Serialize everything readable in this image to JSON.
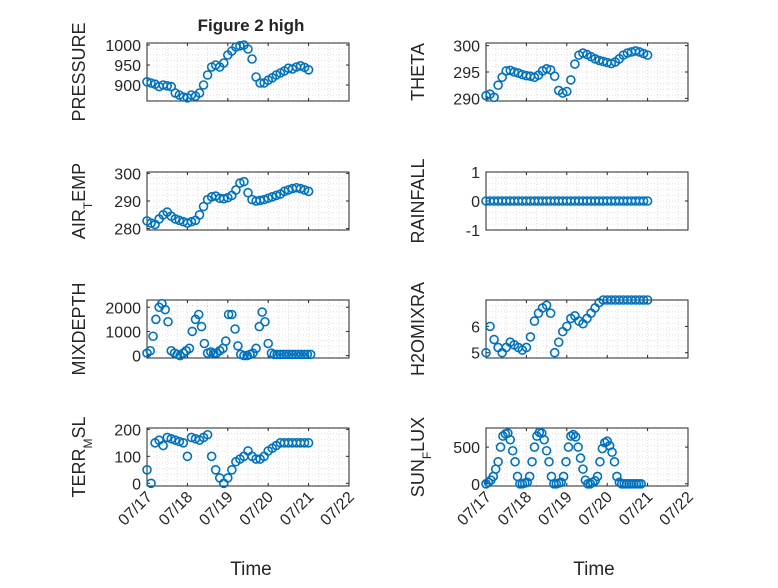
{
  "figure": {
    "title": "Figure 2 high",
    "xlabel_left": "Time",
    "xlabel_right": "Time",
    "marker_color": "#0072BD",
    "axis_color": "#262626",
    "grid_color": "#DFDFDF"
  },
  "chart_data": [
    {
      "type": "scatter",
      "ylabel": "PRESSURE",
      "ylim": [
        860,
        1005
      ],
      "yticks": [
        900,
        950,
        1000
      ],
      "yticklabels": [
        "900",
        "950",
        "1000"
      ],
      "xlim": [
        "07/17",
        "07/22"
      ],
      "xticks": [
        "07/17",
        "07/18",
        "07/19",
        "07/20",
        "07/21",
        "07/22"
      ],
      "show_x_ticklabels": false,
      "grid": true,
      "x": [
        0.0,
        0.1,
        0.2,
        0.3,
        0.4,
        0.5,
        0.6,
        0.7,
        0.8,
        0.9,
        1.0,
        1.1,
        1.2,
        1.3,
        1.4,
        1.5,
        1.6,
        1.7,
        1.8,
        1.9,
        2.0,
        2.1,
        2.2,
        2.3,
        2.4,
        2.5,
        2.6,
        2.7,
        2.8,
        2.9,
        3.0,
        3.1,
        3.2,
        3.3,
        3.4,
        3.5,
        3.6,
        3.7,
        3.8,
        3.9,
        4.0
      ],
      "y": [
        908,
        905,
        902,
        896,
        900,
        898,
        896,
        880,
        875,
        870,
        868,
        875,
        872,
        880,
        900,
        925,
        945,
        950,
        945,
        955,
        975,
        985,
        995,
        998,
        1000,
        990,
        965,
        920,
        905,
        905,
        912,
        918,
        925,
        930,
        935,
        942,
        940,
        945,
        948,
        944,
        938
      ]
    },
    {
      "type": "scatter",
      "ylabel": "THETA",
      "ylim": [
        289.5,
        300.5
      ],
      "yticks": [
        290,
        295,
        300
      ],
      "yticklabels": [
        "290",
        "295",
        "300"
      ],
      "xlim": [
        "07/17",
        "07/22"
      ],
      "xticks": [
        "07/17",
        "07/18",
        "07/19",
        "07/20",
        "07/21",
        "07/22"
      ],
      "show_x_ticklabels": false,
      "grid": true,
      "x": [
        0.0,
        0.1,
        0.2,
        0.3,
        0.4,
        0.5,
        0.6,
        0.7,
        0.8,
        0.9,
        1.0,
        1.1,
        1.2,
        1.3,
        1.4,
        1.5,
        1.6,
        1.7,
        1.8,
        1.9,
        2.0,
        2.1,
        2.2,
        2.3,
        2.4,
        2.5,
        2.6,
        2.7,
        2.8,
        2.9,
        3.0,
        3.1,
        3.2,
        3.3,
        3.4,
        3.5,
        3.6,
        3.7,
        3.8,
        3.9,
        4.0
      ],
      "y": [
        290.5,
        290.8,
        290.2,
        292.5,
        294.0,
        295.2,
        295.3,
        295.0,
        294.8,
        294.5,
        294.3,
        294.2,
        294.0,
        294.4,
        295.2,
        295.6,
        295.4,
        294.2,
        291.5,
        291.0,
        291.3,
        293.5,
        296.5,
        298.2,
        298.6,
        298.3,
        297.9,
        297.5,
        297.2,
        297.0,
        296.8,
        296.6,
        296.9,
        297.5,
        298.2,
        298.6,
        298.8,
        299.0,
        298.8,
        298.5,
        298.2
      ]
    },
    {
      "type": "scatter",
      "ylabel": "AIR_TEMP",
      "ylim": [
        279.5,
        300.5
      ],
      "yticks": [
        280,
        290,
        300
      ],
      "yticklabels": [
        "280",
        "290",
        "300"
      ],
      "xlim": [
        "07/17",
        "07/22"
      ],
      "xticks": [
        "07/17",
        "07/18",
        "07/19",
        "07/20",
        "07/21",
        "07/22"
      ],
      "show_x_ticklabels": false,
      "grid": true,
      "x": [
        0.0,
        0.1,
        0.2,
        0.3,
        0.4,
        0.5,
        0.6,
        0.7,
        0.8,
        0.9,
        1.0,
        1.1,
        1.2,
        1.3,
        1.4,
        1.5,
        1.6,
        1.7,
        1.8,
        1.9,
        2.0,
        2.1,
        2.2,
        2.3,
        2.4,
        2.5,
        2.6,
        2.7,
        2.8,
        2.9,
        3.0,
        3.1,
        3.2,
        3.3,
        3.4,
        3.5,
        3.6,
        3.7,
        3.8,
        3.9,
        4.0
      ],
      "y": [
        282.8,
        282.0,
        281.5,
        283.5,
        285.0,
        286.0,
        284.5,
        283.5,
        283.0,
        282.5,
        282.0,
        282.5,
        283.0,
        285.0,
        288.0,
        290.5,
        291.5,
        291.8,
        291.0,
        290.8,
        291.2,
        292.0,
        294.0,
        296.5,
        297.0,
        293.0,
        290.5,
        290.0,
        290.2,
        290.5,
        291.0,
        291.5,
        292.0,
        292.5,
        293.5,
        294.0,
        294.5,
        294.8,
        294.5,
        294.0,
        293.5
      ]
    },
    {
      "type": "scatter",
      "ylabel": "RAINFALL",
      "ylim": [
        -1,
        1
      ],
      "yticks": [
        -1,
        0,
        1
      ],
      "yticklabels": [
        "-1",
        "0",
        "1"
      ],
      "xlim": [
        "07/17",
        "07/22"
      ],
      "xticks": [
        "07/17",
        "07/18",
        "07/19",
        "07/20",
        "07/21",
        "07/22"
      ],
      "show_x_ticklabels": false,
      "grid": true,
      "x": [
        0.0,
        0.1,
        0.2,
        0.3,
        0.4,
        0.5,
        0.6,
        0.7,
        0.8,
        0.9,
        1.0,
        1.1,
        1.2,
        1.3,
        1.4,
        1.5,
        1.6,
        1.7,
        1.8,
        1.9,
        2.0,
        2.1,
        2.2,
        2.3,
        2.4,
        2.5,
        2.6,
        2.7,
        2.8,
        2.9,
        3.0,
        3.1,
        3.2,
        3.3,
        3.4,
        3.5,
        3.6,
        3.7,
        3.8,
        3.9,
        4.0
      ],
      "y": [
        0,
        0,
        0,
        0,
        0,
        0,
        0,
        0,
        0,
        0,
        0,
        0,
        0,
        0,
        0,
        0,
        0,
        0,
        0,
        0,
        0,
        0,
        0,
        0,
        0,
        0,
        0,
        0,
        0,
        0,
        0,
        0,
        0,
        0,
        0,
        0,
        0,
        0,
        0,
        0,
        0
      ]
    },
    {
      "type": "scatter",
      "ylabel": "MIXDEPTH",
      "ylim": [
        -100,
        2300
      ],
      "yticks": [
        0,
        1000,
        2000
      ],
      "yticklabels": [
        "0",
        "1000",
        "2000"
      ],
      "xlim": [
        "07/17",
        "07/22"
      ],
      "xticks": [
        "07/17",
        "07/18",
        "07/19",
        "07/20",
        "07/21",
        "07/22"
      ],
      "show_x_ticklabels": false,
      "grid": true,
      "x": [
        0.0,
        0.08,
        0.15,
        0.22,
        0.3,
        0.37,
        0.45,
        0.52,
        0.6,
        0.68,
        0.75,
        0.82,
        0.9,
        0.97,
        1.05,
        1.12,
        1.2,
        1.28,
        1.35,
        1.42,
        1.5,
        1.58,
        1.65,
        1.72,
        1.8,
        1.88,
        1.95,
        2.02,
        2.1,
        2.18,
        2.25,
        2.32,
        2.4,
        2.48,
        2.55,
        2.62,
        2.7,
        2.78,
        2.85,
        2.92,
        3.0,
        3.08,
        3.15,
        3.22,
        3.3,
        3.38,
        3.45,
        3.52,
        3.6,
        3.68,
        3.75,
        3.82,
        3.9,
        3.97,
        4.05
      ],
      "y": [
        100,
        200,
        800,
        1500,
        2000,
        2150,
        1900,
        1400,
        200,
        100,
        50,
        0,
        100,
        200,
        300,
        1000,
        1500,
        1700,
        1200,
        500,
        100,
        150,
        100,
        100,
        200,
        300,
        600,
        1700,
        1700,
        1100,
        400,
        50,
        0,
        0,
        50,
        100,
        300,
        1200,
        1800,
        1400,
        500,
        100,
        50,
        50,
        50,
        50,
        50,
        50,
        50,
        50,
        50,
        50,
        50,
        50,
        50
      ]
    },
    {
      "type": "scatter",
      "ylabel": "H2OMIXRA",
      "ylim": [
        4.8,
        7.0
      ],
      "yticks": [
        5,
        6
      ],
      "yticklabels": [
        "5",
        "6"
      ],
      "xlim": [
        "07/17",
        "07/22"
      ],
      "xticks": [
        "07/17",
        "07/18",
        "07/19",
        "07/20",
        "07/21",
        "07/22"
      ],
      "show_x_ticklabels": false,
      "grid": true,
      "x": [
        0.0,
        0.1,
        0.2,
        0.3,
        0.4,
        0.5,
        0.6,
        0.7,
        0.8,
        0.9,
        1.0,
        1.1,
        1.2,
        1.3,
        1.4,
        1.5,
        1.6,
        1.7,
        1.8,
        1.9,
        2.0,
        2.1,
        2.2,
        2.3,
        2.4,
        2.5,
        2.6,
        2.7,
        2.8,
        2.9,
        3.0,
        3.1,
        3.2,
        3.3,
        3.4,
        3.5,
        3.6,
        3.7,
        3.8,
        3.9,
        4.0
      ],
      "y": [
        5.0,
        6.0,
        5.5,
        5.2,
        5.0,
        5.2,
        5.4,
        5.3,
        5.2,
        5.1,
        5.2,
        5.6,
        6.2,
        6.5,
        6.7,
        6.8,
        6.5,
        5.0,
        5.4,
        5.8,
        6.0,
        6.3,
        6.4,
        6.2,
        6.1,
        6.3,
        6.5,
        6.7,
        6.9,
        7.0,
        7.0,
        7.0,
        7.0,
        7.0,
        7.0,
        7.0,
        7.0,
        7.0,
        7.0,
        7.0,
        7.0
      ]
    },
    {
      "type": "scatter",
      "ylabel": "TERR_MSL",
      "ylim": [
        -10,
        205
      ],
      "yticks": [
        0,
        100,
        200
      ],
      "yticklabels": [
        "0",
        "100",
        "200"
      ],
      "xlim": [
        "07/17",
        "07/22"
      ],
      "xticks": [
        "07/17",
        "07/18",
        "07/19",
        "07/20",
        "07/21",
        "07/22"
      ],
      "show_x_ticklabels": true,
      "grid": true,
      "x": [
        0.0,
        0.1,
        0.2,
        0.3,
        0.4,
        0.5,
        0.6,
        0.7,
        0.8,
        0.9,
        1.0,
        1.1,
        1.2,
        1.3,
        1.4,
        1.5,
        1.6,
        1.7,
        1.8,
        1.9,
        2.0,
        2.1,
        2.2,
        2.3,
        2.4,
        2.5,
        2.6,
        2.7,
        2.8,
        2.9,
        3.0,
        3.1,
        3.2,
        3.3,
        3.4,
        3.5,
        3.6,
        3.7,
        3.8,
        3.9,
        4.0
      ],
      "y": [
        50,
        0,
        150,
        160,
        140,
        170,
        165,
        160,
        155,
        150,
        100,
        170,
        165,
        160,
        170,
        180,
        100,
        50,
        20,
        0,
        20,
        50,
        80,
        90,
        100,
        120,
        100,
        90,
        90,
        100,
        120,
        130,
        140,
        150,
        150,
        150,
        150,
        150,
        150,
        150,
        150
      ]
    },
    {
      "type": "scatter",
      "ylabel": "SUN_FLUX",
      "ylim": [
        -30,
        760
      ],
      "yticks": [
        0,
        500
      ],
      "yticklabels": [
        "0",
        "500"
      ],
      "xlim": [
        "07/17",
        "07/22"
      ],
      "xticks": [
        "07/17",
        "07/18",
        "07/19",
        "07/20",
        "07/21",
        "07/22"
      ],
      "show_x_ticklabels": true,
      "grid": true,
      "x": [
        0.0,
        0.06,
        0.12,
        0.18,
        0.24,
        0.3,
        0.36,
        0.42,
        0.48,
        0.54,
        0.6,
        0.66,
        0.72,
        0.78,
        0.84,
        0.9,
        0.96,
        1.02,
        1.08,
        1.14,
        1.2,
        1.26,
        1.32,
        1.38,
        1.44,
        1.5,
        1.56,
        1.62,
        1.68,
        1.74,
        1.8,
        1.86,
        1.92,
        1.98,
        2.04,
        2.1,
        2.16,
        2.22,
        2.28,
        2.34,
        2.4,
        2.46,
        2.52,
        2.58,
        2.64,
        2.7,
        2.76,
        2.82,
        2.88,
        2.94,
        3.0,
        3.06,
        3.12,
        3.18,
        3.24,
        3.3,
        3.36,
        3.42,
        3.48,
        3.54,
        3.6,
        3.66,
        3.72,
        3.78,
        3.84
      ],
      "y": [
        0,
        20,
        50,
        100,
        200,
        300,
        500,
        650,
        680,
        690,
        600,
        450,
        300,
        100,
        0,
        0,
        10,
        20,
        100,
        300,
        500,
        650,
        700,
        690,
        600,
        450,
        300,
        100,
        0,
        0,
        10,
        20,
        100,
        300,
        500,
        650,
        670,
        640,
        500,
        350,
        200,
        50,
        0,
        0,
        20,
        40,
        100,
        300,
        480,
        560,
        580,
        520,
        430,
        300,
        100,
        20,
        0,
        0,
        0,
        0,
        0,
        0,
        0,
        0,
        0
      ]
    }
  ]
}
